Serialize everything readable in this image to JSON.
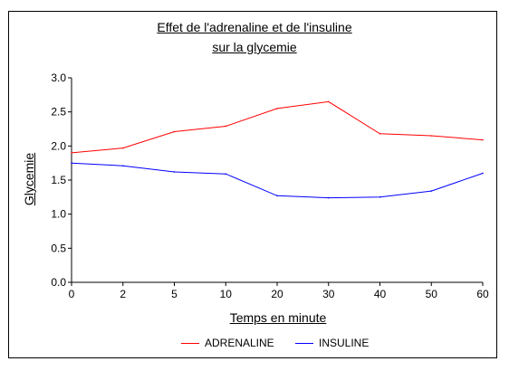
{
  "chart_data": {
    "type": "line",
    "title_line1": "Effet de l'adrenaline et de l'insuline",
    "title_line2": "sur la glycemie",
    "xlabel": "Temps en minute",
    "ylabel": "Glycemie",
    "categories": [
      "0",
      "2",
      "5",
      "10",
      "20",
      "30",
      "40",
      "50",
      "60"
    ],
    "yticks": [
      "0.0",
      "0.5",
      "1.0",
      "1.5",
      "2.0",
      "2.5",
      "3.0"
    ],
    "ylim": [
      0,
      3
    ],
    "grid": false,
    "legend_position": "bottom",
    "series": [
      {
        "name": "ADRENALINE",
        "color": "#ff0000",
        "values": [
          1.9,
          1.97,
          2.21,
          2.29,
          2.55,
          2.65,
          2.18,
          2.15,
          2.09
        ]
      },
      {
        "name": "INSULINE",
        "color": "#0000ff",
        "values": [
          1.75,
          1.71,
          1.62,
          1.59,
          1.27,
          1.24,
          1.25,
          1.34,
          1.6
        ]
      }
    ]
  }
}
